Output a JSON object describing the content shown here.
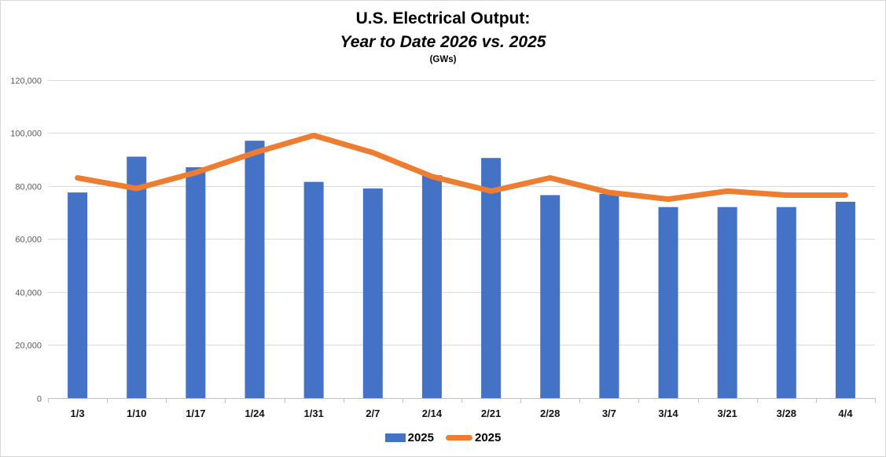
{
  "title": {
    "line1": "U.S. Electrical Output:",
    "line2": "Year to Date 2026 vs. 2025",
    "units": "(GWs)"
  },
  "colors": {
    "bar_series": "#4472C4",
    "line_series": "#ED7D31",
    "gridline": "#D9D9D9",
    "axis_line": "#BFBFBF",
    "y_label_text": "#595959",
    "x_label_text": "#111111",
    "chart_border": "#D9D9D9"
  },
  "legend": {
    "items": [
      {
        "label": "2025",
        "swatch": "bar",
        "color": "#4472C4"
      },
      {
        "label": "2025",
        "swatch": "line",
        "color": "#ED7D31"
      }
    ],
    "position": "bottom"
  },
  "chart_data": {
    "type": "bar",
    "subtype": "bar-with-line-overlay",
    "title": "U.S. Electrical Output: Year to Date 2026 vs. 2025 (GWs)",
    "xlabel": "",
    "ylabel": "",
    "ylim": [
      0,
      120000
    ],
    "ytick_interval": 20000,
    "ytick_labels": [
      "0",
      "20,000",
      "40,000",
      "60,000",
      "80,000",
      "100,000",
      "120,000"
    ],
    "grid": "horizontal",
    "legend_position": "bottom",
    "categories": [
      "1/3",
      "1/10",
      "1/17",
      "1/24",
      "1/31",
      "2/7",
      "2/14",
      "2/21",
      "2/28",
      "3/7",
      "3/14",
      "3/21",
      "3/28",
      "4/4"
    ],
    "series": [
      {
        "name": "2025",
        "type": "bar",
        "color": "#4472C4",
        "values": [
          77500,
          91000,
          87000,
          97000,
          81500,
          79000,
          84000,
          90500,
          76500,
          77000,
          72000,
          72000,
          72000,
          74000
        ]
      },
      {
        "name": "2025",
        "type": "line",
        "color": "#ED7D31",
        "values": [
          83000,
          79000,
          85000,
          92500,
          99000,
          92500,
          83500,
          78000,
          83000,
          77500,
          75000,
          78000,
          76500,
          76500
        ]
      }
    ]
  }
}
